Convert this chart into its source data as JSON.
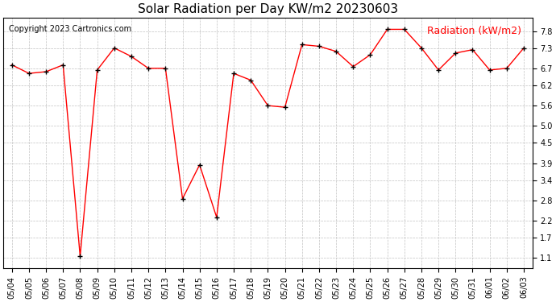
{
  "title": "Solar Radiation per Day KW/m2 20230603",
  "copyright": "Copyright 2023 Cartronics.com",
  "legend_label": "Radiation (kW/m2)",
  "dates": [
    "05/04",
    "05/05",
    "05/06",
    "05/07",
    "05/08",
    "05/09",
    "05/10",
    "05/11",
    "05/12",
    "05/13",
    "05/14",
    "05/15",
    "05/16",
    "05/17",
    "05/18",
    "05/19",
    "05/20",
    "05/21",
    "05/22",
    "05/23",
    "05/24",
    "05/25",
    "05/26",
    "05/27",
    "05/28",
    "05/29",
    "05/30",
    "05/31",
    "06/01",
    "06/02",
    "06/03"
  ],
  "values": [
    6.8,
    6.55,
    6.6,
    6.8,
    1.15,
    6.65,
    7.3,
    7.05,
    6.7,
    6.7,
    2.85,
    3.85,
    2.3,
    6.55,
    6.35,
    5.6,
    5.55,
    7.4,
    7.35,
    7.2,
    6.75,
    7.1,
    7.85,
    7.85,
    7.3,
    6.65,
    7.15,
    7.25,
    6.65,
    6.7,
    7.3
  ],
  "yticks": [
    1.1,
    1.7,
    2.2,
    2.8,
    3.4,
    3.9,
    4.5,
    5.0,
    5.6,
    6.2,
    6.7,
    7.3,
    7.8
  ],
  "ylim": [
    0.8,
    8.2
  ],
  "line_color": "red",
  "marker_color": "black",
  "title_fontsize": 11,
  "copyright_fontsize": 7,
  "legend_fontsize": 9,
  "tick_fontsize": 7,
  "background_color": "#ffffff",
  "grid_color": "#bbbbbb"
}
